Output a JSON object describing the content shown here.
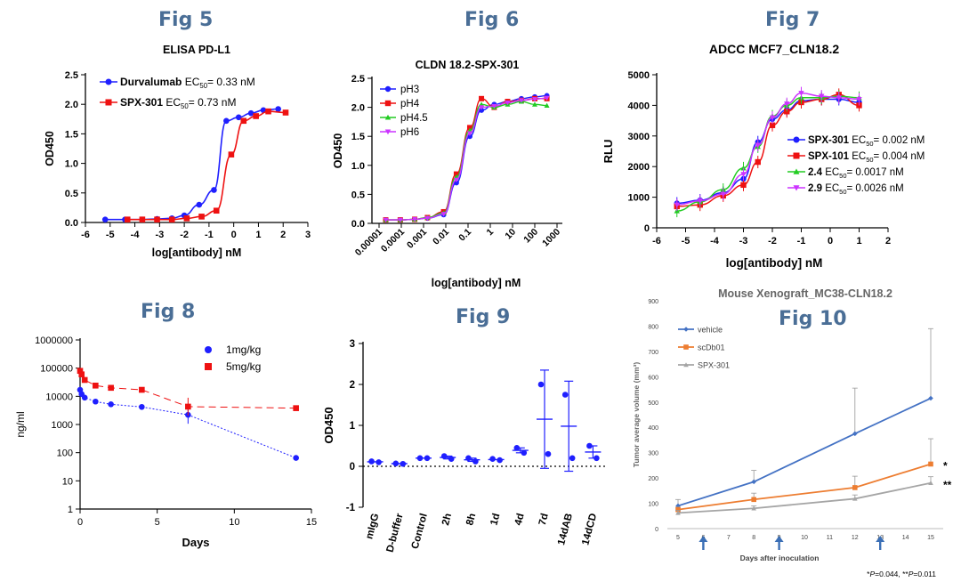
{
  "figures": [
    {
      "label": "Fig 5"
    },
    {
      "label": "Fig 6"
    },
    {
      "label": "Fig 7"
    },
    {
      "label": "Fig 8"
    },
    {
      "label": "Fig 9"
    },
    {
      "label": "Fig 10"
    }
  ],
  "colors": {
    "blue": "#1f1fff",
    "red": "#ee1111",
    "green": "#22cc22",
    "magenta": "#cc33ff",
    "figlabel": "#4a6e96",
    "x_blue": "#4472c4",
    "x_orange": "#ed7d31",
    "x_gray": "#a5a5a5"
  },
  "chart_data": [
    {
      "figure": "Fig 5",
      "type": "scatter",
      "title": "ELISA PD-L1",
      "xlabel": "log[antibody] nM",
      "ylabel": "OD450",
      "xlim": [
        -6,
        3
      ],
      "ylim": [
        0,
        2.5
      ],
      "xticks": [
        "-6",
        "-5",
        "-4",
        "-3",
        "-2",
        "-1",
        "0",
        "1",
        "2",
        "3"
      ],
      "yticks": [
        "0.0",
        "0.5",
        "1.0",
        "1.5",
        "2.0",
        "2.5"
      ],
      "legend_position": "top-left",
      "series": [
        {
          "name": "Durvalumab",
          "ec50_label": "EC50= 0.33 nM",
          "color": "blue",
          "marker": "circle",
          "x": [
            -5.2,
            -4.4,
            -3.7,
            -3.1,
            -2.5,
            -2.0,
            -1.4,
            -0.8,
            -0.3,
            0.2,
            0.7,
            1.2,
            1.8
          ],
          "y": [
            0.05,
            0.05,
            0.05,
            0.06,
            0.07,
            0.12,
            0.3,
            0.55,
            1.72,
            1.78,
            1.85,
            1.9,
            1.92
          ]
        },
        {
          "name": "SPX-301",
          "ec50_label": "EC50= 0.73 nM",
          "color": "red",
          "marker": "square",
          "x": [
            -4.3,
            -3.7,
            -3.1,
            -2.5,
            -1.9,
            -1.3,
            -0.7,
            -0.1,
            0.4,
            0.9,
            1.4,
            2.1
          ],
          "y": [
            0.05,
            0.05,
            0.05,
            0.05,
            0.07,
            0.1,
            0.2,
            1.15,
            1.72,
            1.8,
            1.88,
            1.86
          ]
        }
      ]
    },
    {
      "figure": "Fig 6",
      "type": "scatter",
      "title": "CLDN 18.2-SPX-301",
      "xlabel": "log[antibody] nM",
      "ylabel": "OD450",
      "x_scale": "log",
      "xlim": [
        1e-05,
        1000
      ],
      "ylim": [
        0,
        2.5
      ],
      "xticks": [
        "0.00001",
        "0.0001",
        "0.001",
        "0.01",
        "0.1",
        "1",
        "10",
        "100",
        "1000"
      ],
      "yticks": [
        "0.0",
        "0.5",
        "1.0",
        "1.5",
        "2.0",
        "2.5"
      ],
      "legend_position": "top-left",
      "x": [
        2e-05,
        9e-05,
        0.0004,
        0.0015,
        0.008,
        0.03,
        0.12,
        0.4,
        1.5,
        6,
        25,
        100,
        350
      ],
      "series": [
        {
          "name": "pH3",
          "color": "blue",
          "marker": "circle",
          "y": [
            0.06,
            0.06,
            0.07,
            0.09,
            0.15,
            0.7,
            1.5,
            1.95,
            2.05,
            2.1,
            2.15,
            2.18,
            2.2
          ]
        },
        {
          "name": "pH4",
          "color": "red",
          "marker": "square",
          "y": [
            0.06,
            0.06,
            0.07,
            0.1,
            0.2,
            0.85,
            1.65,
            2.15,
            2.0,
            2.1,
            2.12,
            2.15,
            2.15
          ]
        },
        {
          "name": "pH4.5",
          "color": "green",
          "marker": "triangle",
          "y": [
            0.06,
            0.06,
            0.07,
            0.1,
            0.18,
            0.8,
            1.6,
            2.05,
            2.0,
            2.05,
            2.1,
            2.05,
            2.03
          ]
        },
        {
          "name": "pH6",
          "color": "magenta",
          "marker": "triangle-down",
          "y": [
            0.06,
            0.06,
            0.07,
            0.09,
            0.16,
            0.75,
            1.55,
            2.0,
            2.02,
            2.08,
            2.12,
            2.14,
            2.16
          ]
        }
      ]
    },
    {
      "figure": "Fig 7",
      "type": "scatter",
      "title": "ADCC MCF7_CLN18.2",
      "xlabel": "log[antibody] nM",
      "ylabel": "RLU",
      "xlim": [
        -6,
        2
      ],
      "ylim": [
        0,
        5000
      ],
      "xticks": [
        "-6",
        "-5",
        "-4",
        "-3",
        "-2",
        "-1",
        "0",
        "1",
        "2"
      ],
      "yticks": [
        "0",
        "1000",
        "2000",
        "3000",
        "4000",
        "5000"
      ],
      "legend_position": "right",
      "x": [
        -5.3,
        -4.5,
        -3.7,
        -3.0,
        -2.5,
        -2.0,
        -1.5,
        -1.0,
        -0.3,
        0.3,
        1.0
      ],
      "series": [
        {
          "name": "SPX-301",
          "ec50_label": "EC50= 0.002 nM",
          "color": "blue",
          "marker": "circle",
          "y": [
            800,
            900,
            1150,
            1600,
            2800,
            3550,
            3850,
            4150,
            4200,
            4200,
            4100
          ]
        },
        {
          "name": "SPX-101",
          "ec50_label": "EC50= 0.004 nM",
          "color": "red",
          "marker": "square",
          "y": [
            700,
            750,
            1050,
            1400,
            2150,
            3350,
            3800,
            4100,
            4200,
            4350,
            4000
          ]
        },
        {
          "name": "2.4",
          "ec50_label": "EC50= 0.0017 nM",
          "color": "green",
          "marker": "triangle",
          "y": [
            550,
            850,
            1250,
            1950,
            2650,
            3650,
            4000,
            4250,
            4250,
            4300,
            4250
          ]
        },
        {
          "name": "2.9",
          "ec50_label": "EC50= 0.0026 nM",
          "color": "magenta",
          "marker": "triangle-down",
          "y": [
            750,
            880,
            1100,
            1750,
            2700,
            3600,
            4050,
            4400,
            4300,
            4250,
            4200
          ]
        }
      ]
    },
    {
      "figure": "Fig 8",
      "type": "scatter",
      "xlabel": "Days",
      "ylabel": "ng/ml",
      "y_scale": "log",
      "xlim": [
        0,
        15
      ],
      "ylim": [
        1,
        1000000
      ],
      "xticks": [
        "0",
        "5",
        "10",
        "15"
      ],
      "yticks": [
        "1",
        "10",
        "100",
        "1000",
        "10000",
        "100000",
        "1000000"
      ],
      "legend_position": "top-right",
      "series": [
        {
          "name": "1mg/kg",
          "color": "blue",
          "marker": "circle",
          "x": [
            0,
            0.1,
            0.3,
            1,
            2,
            4,
            7,
            14
          ],
          "y": [
            17000,
            12000,
            9000,
            6500,
            5200,
            4200,
            2200,
            65
          ]
        },
        {
          "name": "5mg/kg",
          "color": "red",
          "marker": "square",
          "x": [
            0,
            0.1,
            0.3,
            1,
            2,
            4,
            7,
            14
          ],
          "y": [
            80000,
            60000,
            38000,
            24000,
            20000,
            17000,
            4300,
            3800
          ]
        }
      ]
    },
    {
      "figure": "Fig 9",
      "type": "scatter",
      "ylabel": "OD450",
      "ylim": [
        -1,
        3
      ],
      "yticks": [
        "-1",
        "0",
        "1",
        "2",
        "3"
      ],
      "categories": [
        "mIgG",
        "D-buffer",
        "Control",
        "2h",
        "8h",
        "1d",
        "4d",
        "7d",
        "14dAB",
        "14dCD"
      ],
      "points": [
        [
          0.12,
          0.1
        ],
        [
          0.07,
          0.06
        ],
        [
          0.2,
          0.2
        ],
        [
          0.25,
          0.18
        ],
        [
          0.2,
          0.12
        ],
        [
          0.18,
          0.15
        ],
        [
          0.45,
          0.33
        ],
        [
          2.0,
          0.3
        ],
        [
          1.75,
          0.2
        ],
        [
          0.5,
          0.2
        ]
      ],
      "mean": [
        0.11,
        0.065,
        0.2,
        0.215,
        0.16,
        0.165,
        0.39,
        1.15,
        0.98,
        0.35
      ],
      "error": [
        0.01,
        0.005,
        0.0,
        0.035,
        0.04,
        0.015,
        0.06,
        1.2,
        1.1,
        0.15
      ],
      "color": "blue"
    },
    {
      "figure": "Fig 10",
      "type": "line",
      "title": "Mouse Xenograft_MC38-CLN18.2",
      "xlabel": "Days after inoculation",
      "ylabel": "Tumor average volume (mm³)",
      "xlim": [
        5,
        15
      ],
      "ylim": [
        0,
        900
      ],
      "xticks": [
        "5",
        "6",
        "7",
        "8",
        "9",
        "10",
        "11",
        "12",
        "13",
        "14",
        "15"
      ],
      "yticks": [
        "0",
        "100",
        "200",
        "300",
        "400",
        "500",
        "600",
        "700",
        "800",
        "900"
      ],
      "legend_position": "top-left",
      "x": [
        5,
        8,
        12,
        15
      ],
      "dosing_days": [
        6,
        9,
        13
      ],
      "series": [
        {
          "name": "vehicle",
          "color": "x_blue",
          "marker": "diamond",
          "y": [
            90,
            185,
            375,
            515
          ],
          "error": [
            25,
            45,
            180,
            275
          ]
        },
        {
          "name": "scDb01",
          "color": "x_orange",
          "marker": "square",
          "y": [
            75,
            115,
            162,
            255
          ],
          "error": [
            10,
            25,
            45,
            100
          ],
          "significance": "*"
        },
        {
          "name": "SPX-301",
          "color": "x_gray",
          "marker": "triangle",
          "y": [
            62,
            80,
            118,
            180
          ],
          "error": [
            10,
            10,
            15,
            25
          ],
          "significance": "**"
        }
      ],
      "footnote": "*P=0.044, **P=0.011"
    }
  ]
}
